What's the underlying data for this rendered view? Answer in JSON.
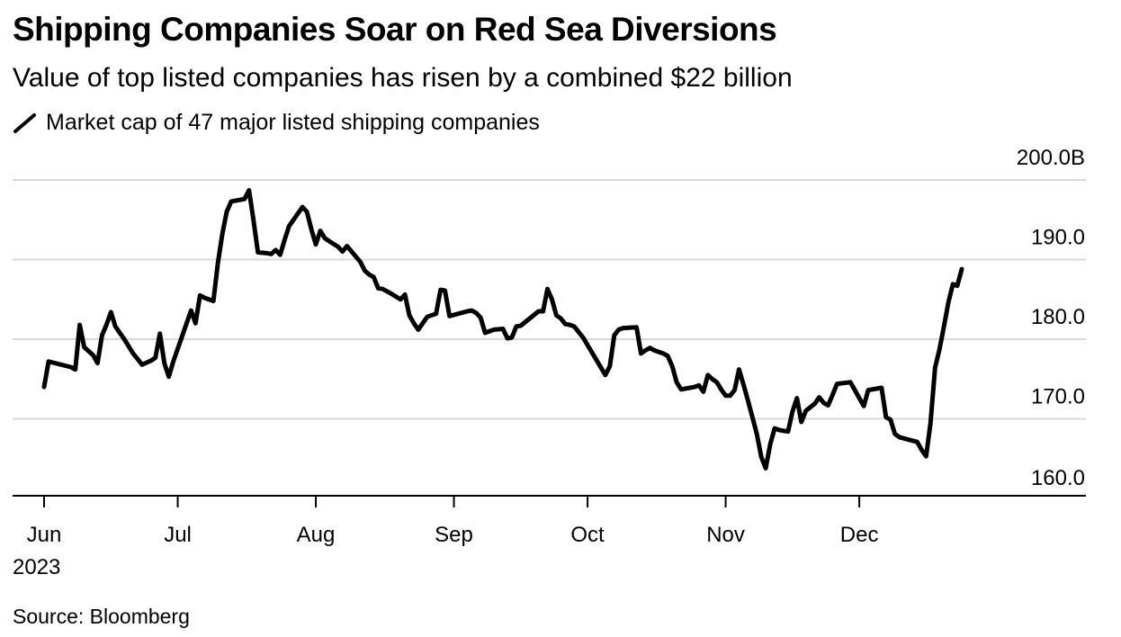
{
  "title": "Shipping Companies Soar on Red Sea Diversions",
  "subtitle": "Value of top listed companies has risen by a combined $22 billion",
  "legend_label": "Market cap of 47 major listed shipping companies",
  "legend_icon": "line-swatch-icon",
  "source": "Source: Bloomberg",
  "colors": {
    "line": "#000000",
    "grid": "#d9d9d9",
    "axis": "#000000",
    "background": "#ffffff"
  },
  "chart_data": {
    "type": "line",
    "title": "Shipping Companies Soar on Red Sea Diversions",
    "subtitle": "Value of top listed companies has risen by a combined $22 billion",
    "xlabel": "",
    "ylabel": "",
    "ylim": [
      160,
      200
    ],
    "yticks": [
      160,
      170,
      180,
      190,
      200
    ],
    "ytick_labels": [
      "160.0",
      "170.0",
      "180.0",
      "190.0",
      "200.0B"
    ],
    "xticks": [
      {
        "label": "Jun",
        "day": 0
      },
      {
        "label": "Jul",
        "day": 30
      },
      {
        "label": "Aug",
        "day": 61
      },
      {
        "label": "Sep",
        "day": 92
      },
      {
        "label": "Oct",
        "day": 122
      },
      {
        "label": "Nov",
        "day": 153
      },
      {
        "label": "Dec",
        "day": 183
      }
    ],
    "year_label": "2023",
    "grid": true,
    "legend": "top-left",
    "series": [
      {
        "name": "Market cap of 47 major listed shipping companies",
        "unit": "B USD",
        "x_unit": "days since Jun 1, 2023",
        "points": [
          [
            0,
            174.0
          ],
          [
            1,
            177.2
          ],
          [
            6,
            176.5
          ],
          [
            7,
            176.2
          ],
          [
            8,
            181.8
          ],
          [
            9,
            179.0
          ],
          [
            11,
            178.0
          ],
          [
            12,
            177.0
          ],
          [
            13,
            180.5
          ],
          [
            14,
            181.8
          ],
          [
            15,
            183.4
          ],
          [
            16,
            181.6
          ],
          [
            18,
            180.0
          ],
          [
            20,
            178.2
          ],
          [
            21,
            177.5
          ],
          [
            22,
            176.8
          ],
          [
            24,
            177.3
          ],
          [
            25,
            177.7
          ],
          [
            26,
            180.7
          ],
          [
            27,
            177.0
          ],
          [
            28,
            175.3
          ],
          [
            29,
            177.2
          ],
          [
            31,
            180.4
          ],
          [
            32,
            182.0
          ],
          [
            33,
            183.6
          ],
          [
            34,
            182.0
          ],
          [
            35,
            185.5
          ],
          [
            36,
            185.2
          ],
          [
            38,
            184.8
          ],
          [
            39,
            189.5
          ],
          [
            40,
            193.2
          ],
          [
            41,
            196.0
          ],
          [
            42,
            197.3
          ],
          [
            45,
            197.6
          ],
          [
            46,
            198.7
          ],
          [
            47,
            195.0
          ],
          [
            48,
            190.9
          ],
          [
            50,
            190.8
          ],
          [
            51,
            190.7
          ],
          [
            52,
            191.2
          ],
          [
            53,
            190.6
          ],
          [
            54,
            192.5
          ],
          [
            55,
            194.2
          ],
          [
            58,
            196.6
          ],
          [
            59,
            196.0
          ],
          [
            60,
            193.8
          ],
          [
            61,
            191.9
          ],
          [
            62,
            193.6
          ],
          [
            63,
            192.7
          ],
          [
            64,
            192.3
          ],
          [
            66,
            191.6
          ],
          [
            67,
            191.0
          ],
          [
            68,
            191.7
          ],
          [
            71,
            189.7
          ],
          [
            72,
            188.6
          ],
          [
            73,
            188.1
          ],
          [
            74,
            187.8
          ],
          [
            75,
            186.4
          ],
          [
            76,
            186.3
          ],
          [
            78,
            185.7
          ],
          [
            80,
            185.0
          ],
          [
            81,
            185.6
          ],
          [
            82,
            183.0
          ],
          [
            83,
            182.0
          ],
          [
            84,
            181.2
          ],
          [
            86,
            182.8
          ],
          [
            88,
            183.2
          ],
          [
            89,
            186.2
          ],
          [
            90,
            186.1
          ],
          [
            91,
            182.9
          ],
          [
            95,
            183.5
          ],
          [
            96,
            183.6
          ],
          [
            97,
            183.3
          ],
          [
            98,
            182.7
          ],
          [
            99,
            180.8
          ],
          [
            100,
            181.0
          ],
          [
            101,
            181.2
          ],
          [
            103,
            181.3
          ],
          [
            104,
            180.1
          ],
          [
            105,
            180.2
          ],
          [
            106,
            181.6
          ],
          [
            107,
            181.7
          ],
          [
            111,
            183.5
          ],
          [
            112,
            183.5
          ],
          [
            113,
            186.3
          ],
          [
            114,
            185.0
          ],
          [
            115,
            183.0
          ],
          [
            116,
            182.6
          ],
          [
            117,
            181.9
          ],
          [
            118,
            181.8
          ],
          [
            119,
            181.6
          ],
          [
            121,
            180.2
          ],
          [
            126,
            175.5
          ],
          [
            127,
            176.6
          ],
          [
            128,
            180.5
          ],
          [
            129,
            181.2
          ],
          [
            130,
            181.4
          ],
          [
            133,
            181.5
          ],
          [
            134,
            178.2
          ],
          [
            135,
            178.6
          ],
          [
            136,
            178.9
          ],
          [
            137,
            178.6
          ],
          [
            138,
            178.4
          ],
          [
            139,
            178.2
          ],
          [
            140,
            177.9
          ],
          [
            141,
            176.6
          ],
          [
            142,
            174.6
          ],
          [
            143,
            173.7
          ],
          [
            146,
            174.0
          ],
          [
            147,
            174.2
          ],
          [
            148,
            173.4
          ],
          [
            149,
            175.5
          ],
          [
            150,
            175.0
          ],
          [
            151,
            174.6
          ],
          [
            152,
            173.7
          ],
          [
            153,
            172.9
          ],
          [
            154,
            172.9
          ],
          [
            155,
            173.6
          ],
          [
            156,
            176.2
          ],
          [
            157,
            174.3
          ],
          [
            158,
            172.3
          ],
          [
            159,
            170.2
          ],
          [
            160,
            168.1
          ],
          [
            161,
            165.2
          ],
          [
            162,
            163.8
          ],
          [
            163,
            166.8
          ],
          [
            164,
            168.8
          ],
          [
            165,
            168.6
          ],
          [
            166,
            168.5
          ],
          [
            167,
            168.4
          ],
          [
            168,
            170.9
          ],
          [
            169,
            172.6
          ],
          [
            170,
            169.6
          ],
          [
            171,
            171.0
          ],
          [
            173,
            171.9
          ],
          [
            174,
            172.7
          ],
          [
            175,
            172.0
          ],
          [
            176,
            171.7
          ],
          [
            177,
            173.0
          ],
          [
            178,
            174.4
          ],
          [
            181,
            174.6
          ],
          [
            182,
            173.6
          ],
          [
            183,
            172.6
          ],
          [
            184,
            171.6
          ],
          [
            185,
            173.6
          ],
          [
            187,
            173.8
          ],
          [
            188,
            173.9
          ],
          [
            189,
            170.2
          ],
          [
            190,
            169.9
          ],
          [
            191,
            168.1
          ],
          [
            192,
            167.7
          ],
          [
            196,
            167.1
          ],
          [
            197,
            166.1
          ],
          [
            198,
            165.3
          ],
          [
            199,
            169.5
          ],
          [
            200,
            176.4
          ],
          [
            201,
            178.7
          ],
          [
            202,
            181.6
          ],
          [
            203,
            184.6
          ],
          [
            204,
            186.9
          ],
          [
            205,
            186.7
          ],
          [
            206,
            188.8
          ]
        ]
      }
    ]
  }
}
